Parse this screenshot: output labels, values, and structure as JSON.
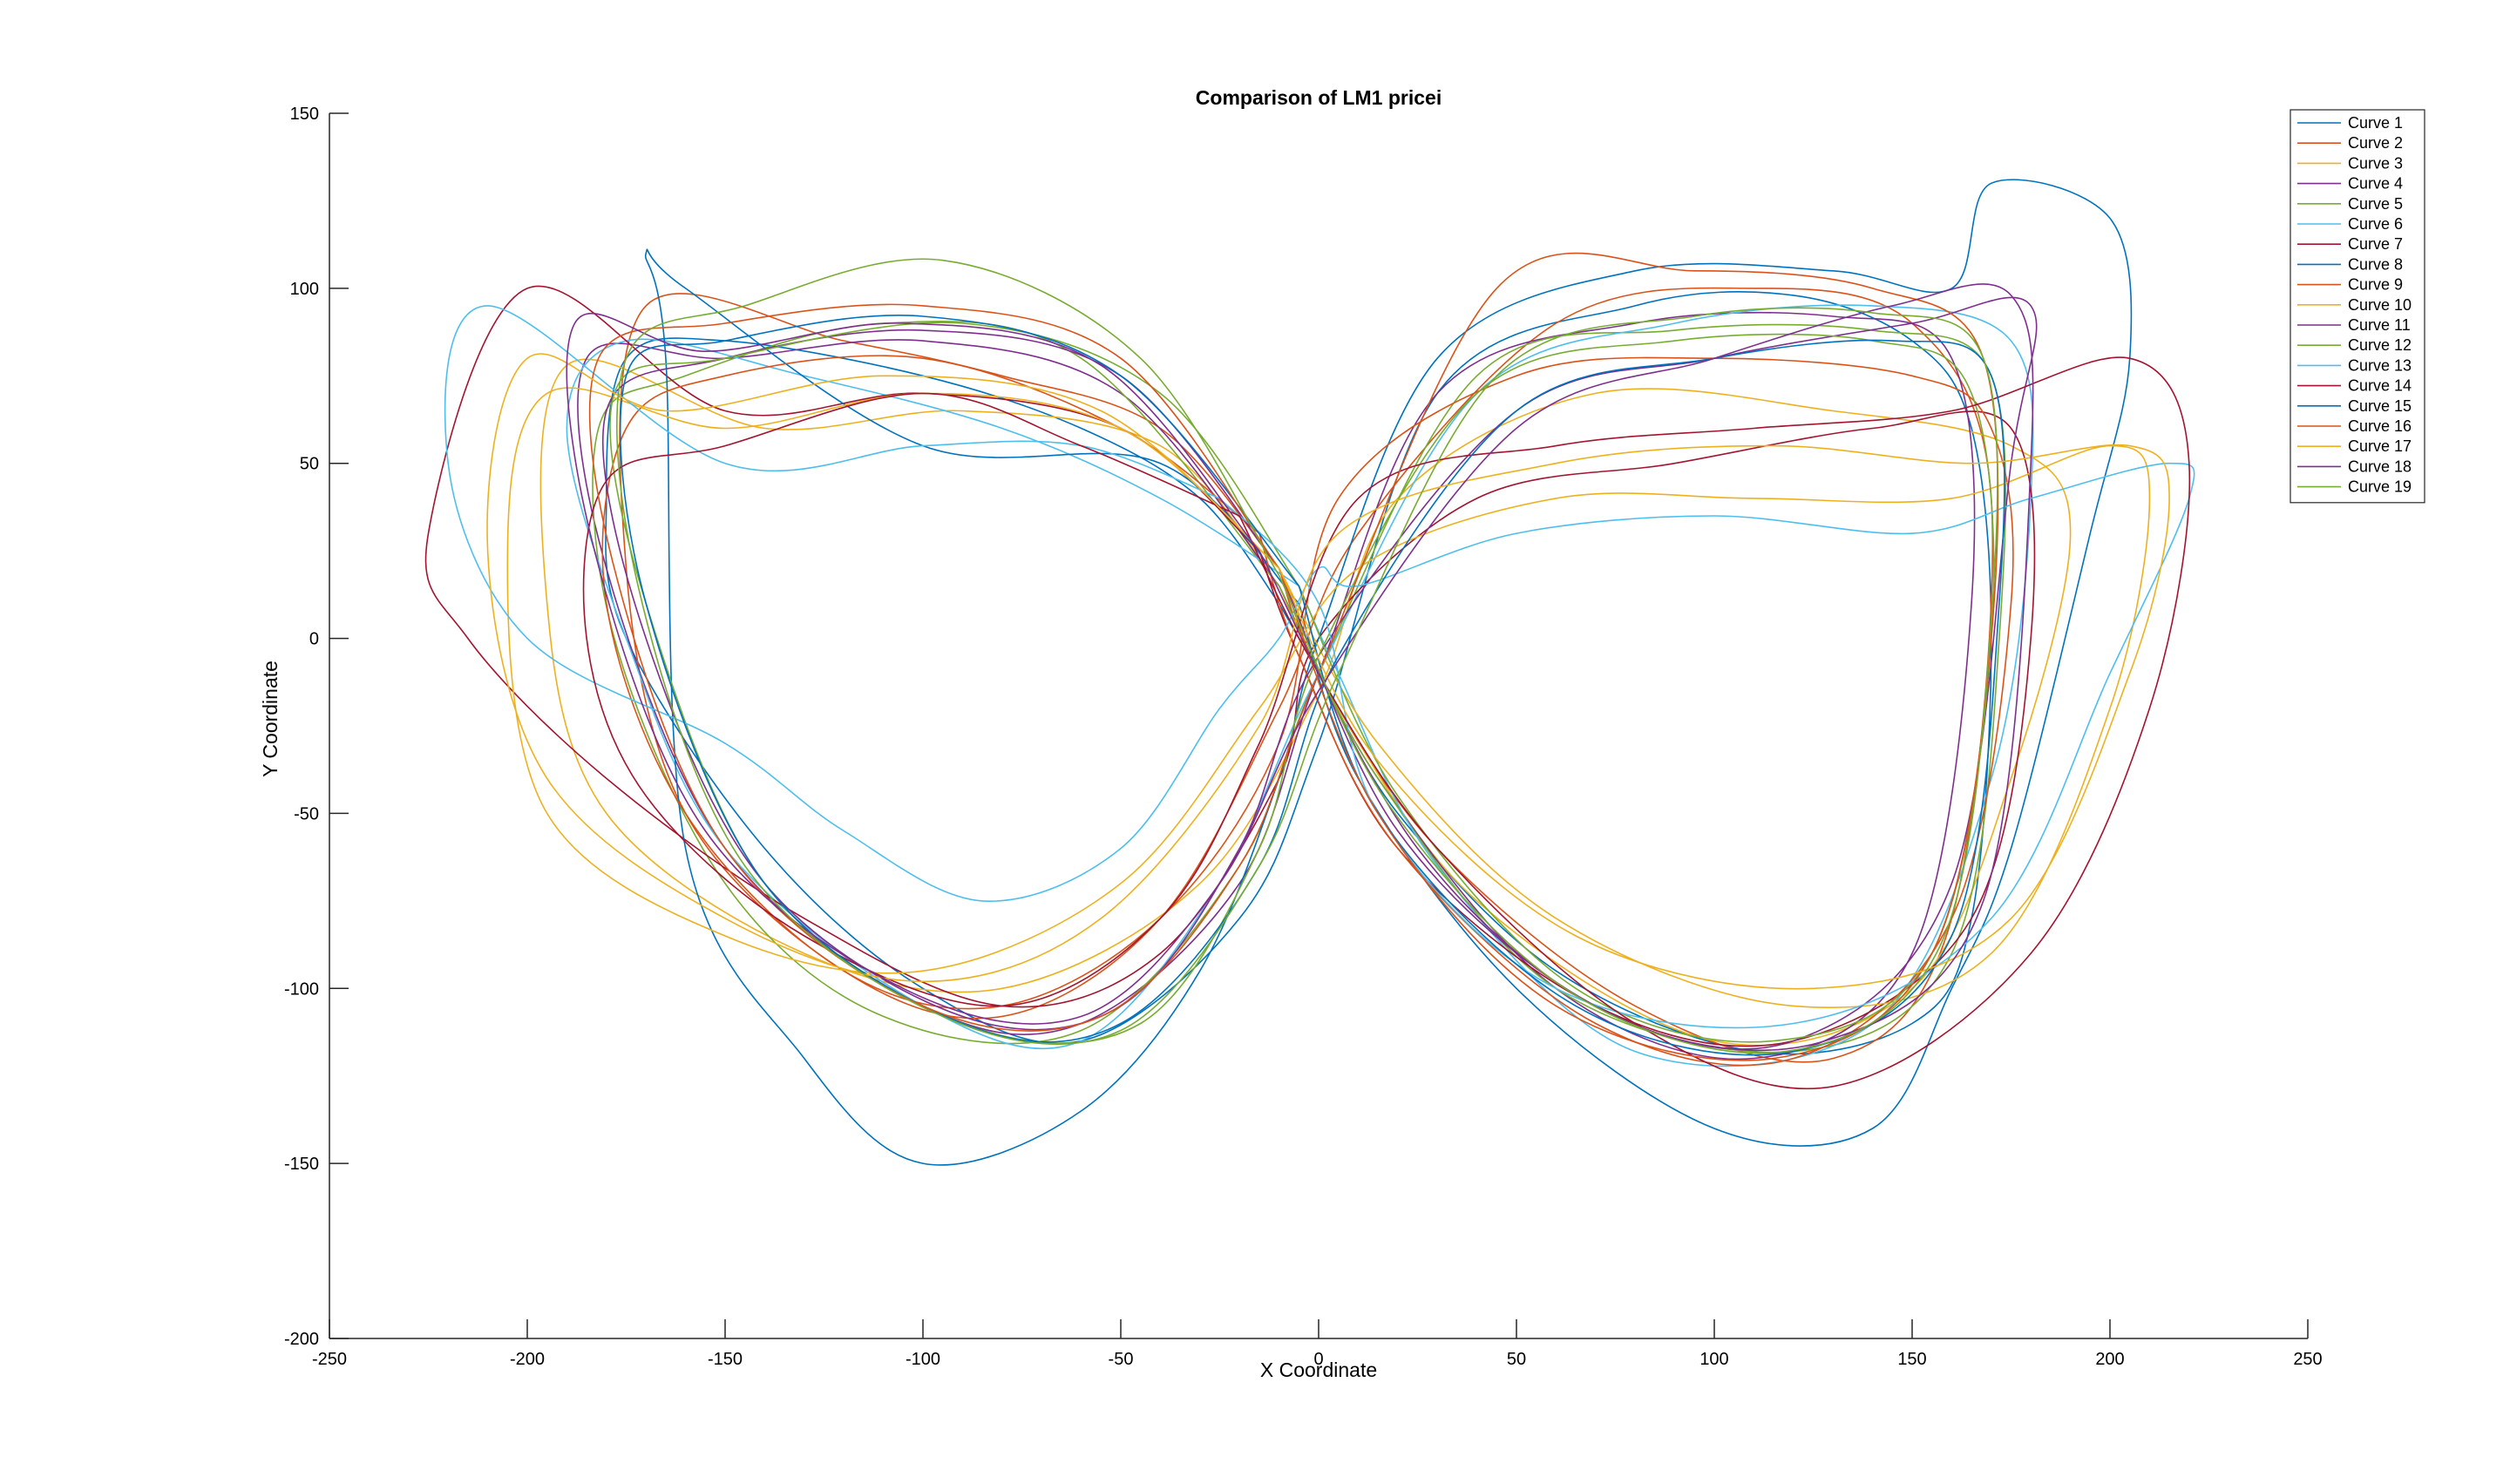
{
  "chart_data": {
    "type": "line",
    "title": "Comparison of LM1 pricei",
    "xlabel": "X Coordinate",
    "ylabel": "Y Coordinate",
    "xlim": [
      -250,
      250
    ],
    "ylim": [
      -200,
      150
    ],
    "xticks": [
      -250,
      -200,
      -150,
      -100,
      -50,
      0,
      50,
      100,
      150,
      200,
      250
    ],
    "yticks": [
      -200,
      -150,
      -100,
      -50,
      0,
      50,
      100,
      150
    ],
    "legend_position": "top-right",
    "grid": false,
    "series": [
      {
        "name": "Curve 1",
        "color": "#0072BD",
        "x": [
          -10,
          -30,
          -60,
          -100,
          -150,
          -175,
          -180,
          -175,
          -140,
          -100,
          -60,
          -20,
          0,
          30,
          80,
          120,
          150,
          165,
          170,
          165,
          150,
          110,
          60,
          20,
          0,
          -10
        ],
        "y": [
          10,
          40,
          60,
          75,
          85,
          80,
          40,
          0,
          -60,
          -100,
          -115,
          -80,
          -30,
          70,
          95,
          98,
          85,
          60,
          0,
          -80,
          -110,
          -118,
          -95,
          -50,
          -10,
          10
        ]
      },
      {
        "name": "Curve 2",
        "color": "#D95319",
        "x": [
          -10,
          -40,
          -80,
          -120,
          -170,
          -175,
          -160,
          -120,
          -80,
          -40,
          -10,
          10,
          60,
          110,
          150,
          170,
          160,
          130,
          80,
          30,
          0,
          -10
        ],
        "y": [
          20,
          60,
          75,
          85,
          95,
          20,
          -50,
          -95,
          -108,
          -80,
          -20,
          30,
          90,
          100,
          90,
          40,
          -80,
          -120,
          -105,
          -60,
          -10,
          20
        ]
      },
      {
        "name": "Curve 3",
        "color": "#EDB120",
        "x": [
          -10,
          -40,
          -90,
          -140,
          -190,
          -195,
          -180,
          -130,
          -80,
          -30,
          0,
          20,
          70,
          130,
          175,
          190,
          175,
          150,
          100,
          40,
          5,
          -10
        ],
        "y": [
          15,
          55,
          65,
          60,
          78,
          10,
          -50,
          -90,
          -100,
          -70,
          -15,
          40,
          70,
          65,
          55,
          30,
          -40,
          -100,
          -115,
          -75,
          -20,
          15
        ]
      },
      {
        "name": "Curve 4",
        "color": "#7E2F8E",
        "x": [
          -10,
          -50,
          -100,
          -150,
          -185,
          -180,
          -150,
          -100,
          -60,
          -20,
          0,
          30,
          80,
          130,
          160,
          165,
          150,
          110,
          60,
          15,
          -10
        ],
        "y": [
          15,
          70,
          85,
          80,
          80,
          20,
          -60,
          -105,
          -110,
          -70,
          -10,
          70,
          90,
          92,
          80,
          10,
          -90,
          -120,
          -100,
          -40,
          15
        ]
      },
      {
        "name": "Curve 5",
        "color": "#77AC30",
        "x": [
          -10,
          -60,
          -110,
          -160,
          -182,
          -178,
          -150,
          -110,
          -60,
          -20,
          0,
          40,
          90,
          140,
          170,
          172,
          160,
          120,
          60,
          15,
          -10
        ],
        "y": [
          15,
          80,
          90,
          75,
          60,
          0,
          -70,
          -108,
          -112,
          -65,
          -10,
          75,
          88,
          88,
          75,
          0,
          -90,
          -118,
          -100,
          -40,
          15
        ]
      },
      {
        "name": "Curve 6",
        "color": "#4DBEEE",
        "x": [
          -5,
          -40,
          -80,
          -130,
          -175,
          -190,
          -175,
          -150,
          -100,
          -60,
          -25,
          0,
          40,
          90,
          140,
          175,
          180,
          170,
          140,
          80,
          30,
          5,
          -5
        ],
        "y": [
          15,
          40,
          60,
          75,
          85,
          60,
          0,
          -60,
          -105,
          -115,
          -70,
          -10,
          70,
          90,
          95,
          85,
          40,
          -40,
          -110,
          -118,
          -65,
          -10,
          15
        ]
      },
      {
        "name": "Curve 7",
        "color": "#A2142F",
        "x": [
          -15,
          -50,
          -100,
          -150,
          -200,
          -225,
          -215,
          -180,
          -130,
          -80,
          -40,
          -10,
          0,
          40,
          90,
          140,
          175,
          180,
          165,
          120,
          70,
          20,
          -5,
          -15
        ],
        "y": [
          25,
          60,
          70,
          65,
          100,
          30,
          0,
          -40,
          -80,
          -105,
          -90,
          -40,
          0,
          40,
          50,
          60,
          60,
          0,
          -80,
          -115,
          -105,
          -60,
          -5,
          25
        ]
      },
      {
        "name": "Curve 8",
        "color": "#0072BD",
        "x": [
          -5,
          -40,
          -100,
          -160,
          -170,
          -165,
          -160,
          -130,
          -100,
          -60,
          -30,
          -10,
          0,
          30,
          80,
          130,
          160,
          170,
          200,
          205,
          195,
          175,
          160,
          140,
          100,
          50,
          10,
          -5
        ],
        "y": [
          10,
          50,
          55,
          100,
          110,
          80,
          -60,
          -120,
          -150,
          -135,
          -95,
          -40,
          0,
          80,
          105,
          105,
          100,
          130,
          120,
          80,
          30,
          -60,
          -100,
          -140,
          -140,
          -100,
          -40,
          10
        ]
      },
      {
        "name": "Curve 9",
        "color": "#D95319",
        "x": [
          -15,
          -50,
          -100,
          -150,
          -175,
          -180,
          -160,
          -120,
          -80,
          -40,
          -10,
          5,
          50,
          100,
          150,
          170,
          175,
          160,
          120,
          70,
          20,
          -5,
          -15
        ],
        "y": [
          30,
          60,
          80,
          75,
          60,
          10,
          -50,
          -95,
          -105,
          -80,
          -30,
          40,
          75,
          80,
          75,
          60,
          10,
          -80,
          -120,
          -110,
          -60,
          -5,
          30
        ]
      },
      {
        "name": "Curve 10",
        "color": "#EDB120",
        "x": [
          -10,
          -50,
          -100,
          -150,
          -195,
          -205,
          -195,
          -150,
          -100,
          -50,
          -15,
          10,
          60,
          110,
          160,
          200,
          210,
          200,
          170,
          120,
          60,
          15,
          -10
        ],
        "y": [
          20,
          60,
          70,
          60,
          70,
          20,
          -50,
          -85,
          -95,
          -70,
          -20,
          20,
          40,
          40,
          40,
          55,
          40,
          -20,
          -90,
          -105,
          -80,
          -30,
          20
        ]
      },
      {
        "name": "Curve 11",
        "color": "#7E2F8E",
        "x": [
          -10,
          -50,
          -100,
          -150,
          -180,
          -170,
          -140,
          -90,
          -50,
          -20,
          0,
          50,
          100,
          150,
          180,
          175,
          160,
          120,
          70,
          20,
          -10
        ],
        "y": [
          20,
          75,
          88,
          80,
          65,
          0,
          -70,
          -108,
          -105,
          -60,
          -5,
          65,
          80,
          90,
          95,
          50,
          -70,
          -115,
          -105,
          -55,
          20
        ]
      },
      {
        "name": "Curve 12",
        "color": "#77AC30",
        "x": [
          -5,
          -40,
          -90,
          -150,
          -178,
          -170,
          -140,
          -90,
          -45,
          -15,
          0,
          40,
          90,
          140,
          165,
          170,
          155,
          115,
          65,
          20,
          -5
        ],
        "y": [
          15,
          70,
          90,
          80,
          70,
          10,
          -70,
          -110,
          -110,
          -60,
          -5,
          70,
          85,
          85,
          70,
          0,
          -90,
          -115,
          -100,
          -45,
          15
        ]
      },
      {
        "name": "Curve 13",
        "color": "#4DBEEE",
        "x": [
          -25,
          -60,
          -100,
          -150,
          -210,
          -220,
          -200,
          -150,
          -120,
          -85,
          -50,
          -25,
          -10,
          0,
          10,
          50,
          100,
          150,
          180,
          215,
          220,
          200,
          170,
          120,
          60,
          15,
          0,
          -25
        ],
        "y": [
          40,
          55,
          55,
          50,
          95,
          50,
          0,
          -30,
          -55,
          -75,
          -60,
          -20,
          0,
          20,
          15,
          30,
          35,
          30,
          40,
          50,
          40,
          -10,
          -80,
          -110,
          -100,
          -50,
          10,
          40
        ]
      },
      {
        "name": "Curve 14",
        "color": "#A2142F",
        "x": [
          -20,
          -60,
          -100,
          -150,
          -180,
          -185,
          -170,
          -130,
          -80,
          -40,
          -15,
          10,
          60,
          110,
          160,
          205,
          220,
          210,
          180,
          130,
          80,
          30,
          0,
          -20
        ],
        "y": [
          35,
          55,
          70,
          55,
          45,
          0,
          -45,
          -85,
          -105,
          -80,
          -30,
          40,
          55,
          60,
          65,
          80,
          50,
          -20,
          -90,
          -128,
          -110,
          -60,
          -10,
          35
        ]
      },
      {
        "name": "Curve 15",
        "color": "#0072BD",
        "x": [
          -5,
          -50,
          -100,
          -150,
          -175,
          -170,
          -140,
          -90,
          -50,
          -15,
          5,
          50,
          100,
          145,
          170,
          172,
          160,
          120,
          65,
          15,
          -5
        ],
        "y": [
          15,
          75,
          92,
          85,
          75,
          10,
          -70,
          -110,
          -110,
          -65,
          -5,
          65,
          80,
          85,
          75,
          10,
          -85,
          -118,
          -105,
          -50,
          15
        ]
      },
      {
        "name": "Curve 16",
        "color": "#D95319",
        "x": [
          -10,
          -50,
          -100,
          -150,
          -182,
          -178,
          -150,
          -100,
          -55,
          -20,
          0,
          45,
          95,
          140,
          168,
          170,
          155,
          115,
          60,
          15,
          -10
        ],
        "y": [
          20,
          80,
          95,
          90,
          80,
          20,
          -60,
          -105,
          -108,
          -65,
          -10,
          100,
          105,
          100,
          80,
          0,
          -90,
          -120,
          -105,
          -50,
          20
        ]
      },
      {
        "name": "Curve 17",
        "color": "#EDB120",
        "x": [
          -10,
          -55,
          -110,
          -165,
          -200,
          -210,
          -195,
          -150,
          -100,
          -55,
          -15,
          5,
          60,
          115,
          165,
          205,
          215,
          205,
          175,
          125,
          65,
          15,
          -10
        ],
        "y": [
          20,
          65,
          75,
          65,
          80,
          25,
          -40,
          -80,
          -98,
          -80,
          -25,
          30,
          50,
          55,
          50,
          55,
          40,
          -10,
          -80,
          -100,
          -85,
          -35,
          20
        ]
      },
      {
        "name": "Curve 18",
        "color": "#7E2F8E",
        "x": [
          -15,
          -55,
          -105,
          -155,
          -188,
          -183,
          -155,
          -105,
          -60,
          -25,
          0,
          50,
          100,
          145,
          175,
          180,
          168,
          128,
          75,
          25,
          -15
        ],
        "y": [
          25,
          78,
          90,
          82,
          90,
          25,
          -55,
          -100,
          -108,
          -70,
          -15,
          60,
          80,
          95,
          98,
          50,
          -75,
          -115,
          -108,
          -60,
          25
        ]
      },
      {
        "name": "Curve 19",
        "color": "#77AC30",
        "x": [
          -10,
          -45,
          -95,
          -145,
          -175,
          -172,
          -145,
          -95,
          -50,
          -15,
          5,
          45,
          95,
          140,
          168,
          170,
          157,
          118,
          65,
          18,
          -10
        ],
        "y": [
          18,
          80,
          108,
          95,
          80,
          15,
          -65,
          -108,
          -112,
          -65,
          -10,
          75,
          92,
          93,
          80,
          5,
          -88,
          -118,
          -102,
          -48,
          18
        ]
      }
    ]
  }
}
